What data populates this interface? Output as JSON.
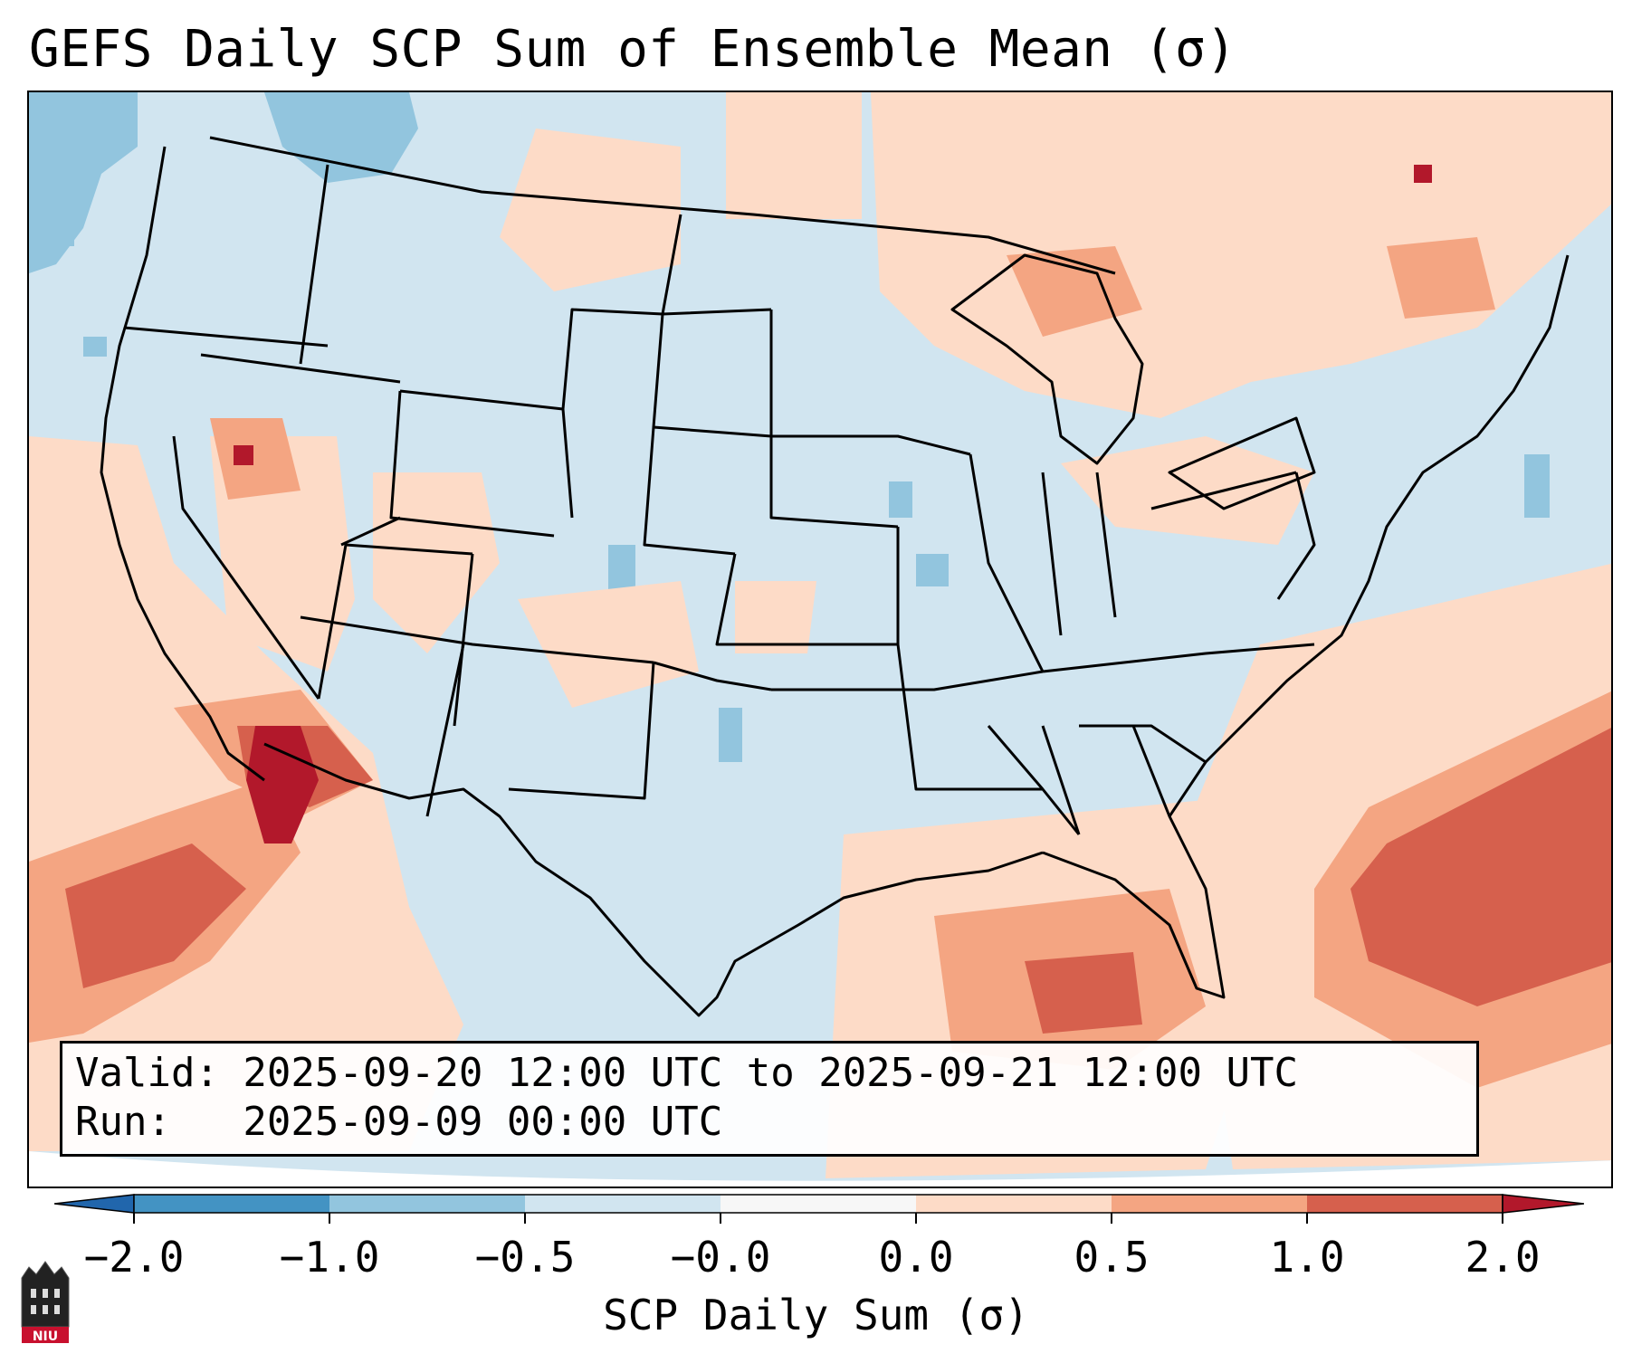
{
  "title": "GEFS Daily SCP Sum of Ensemble Mean (σ)",
  "info": {
    "valid_line": "Valid: 2025-09-20 12:00 UTC to 2025-09-21 12:00 UTC",
    "run_line": "Run:   2025-09-09 00:00 UTC"
  },
  "colorbar": {
    "label": "SCP Daily Sum (σ)",
    "ticks": [
      "−2.0",
      "−1.0",
      "−0.5",
      "−0.0",
      "0.0",
      "0.5",
      "1.0",
      "2.0"
    ],
    "bins": [
      {
        "range": "-2.0 to -1.0",
        "color": "#4393c3"
      },
      {
        "range": "-1.0 to -0.5",
        "color": "#92c5de"
      },
      {
        "range": "-0.5 to -0.0",
        "color": "#d1e5f0"
      },
      {
        "range": "-0.0 to 0.0",
        "color": "#f7f7f7"
      },
      {
        "range": "0.0 to 0.5",
        "color": "#fddbc7"
      },
      {
        "range": "0.5 to 1.0",
        "color": "#f4a582"
      },
      {
        "range": "1.0 to 2.0",
        "color": "#d6604d"
      }
    ],
    "under_color": "#2166ac",
    "over_color": "#b2182b"
  },
  "map": {
    "region": "Continental United States",
    "background_color": "#d1e5f0",
    "border_color": "#000000"
  },
  "logo": {
    "text": "NIU",
    "color": "#c8102e"
  }
}
